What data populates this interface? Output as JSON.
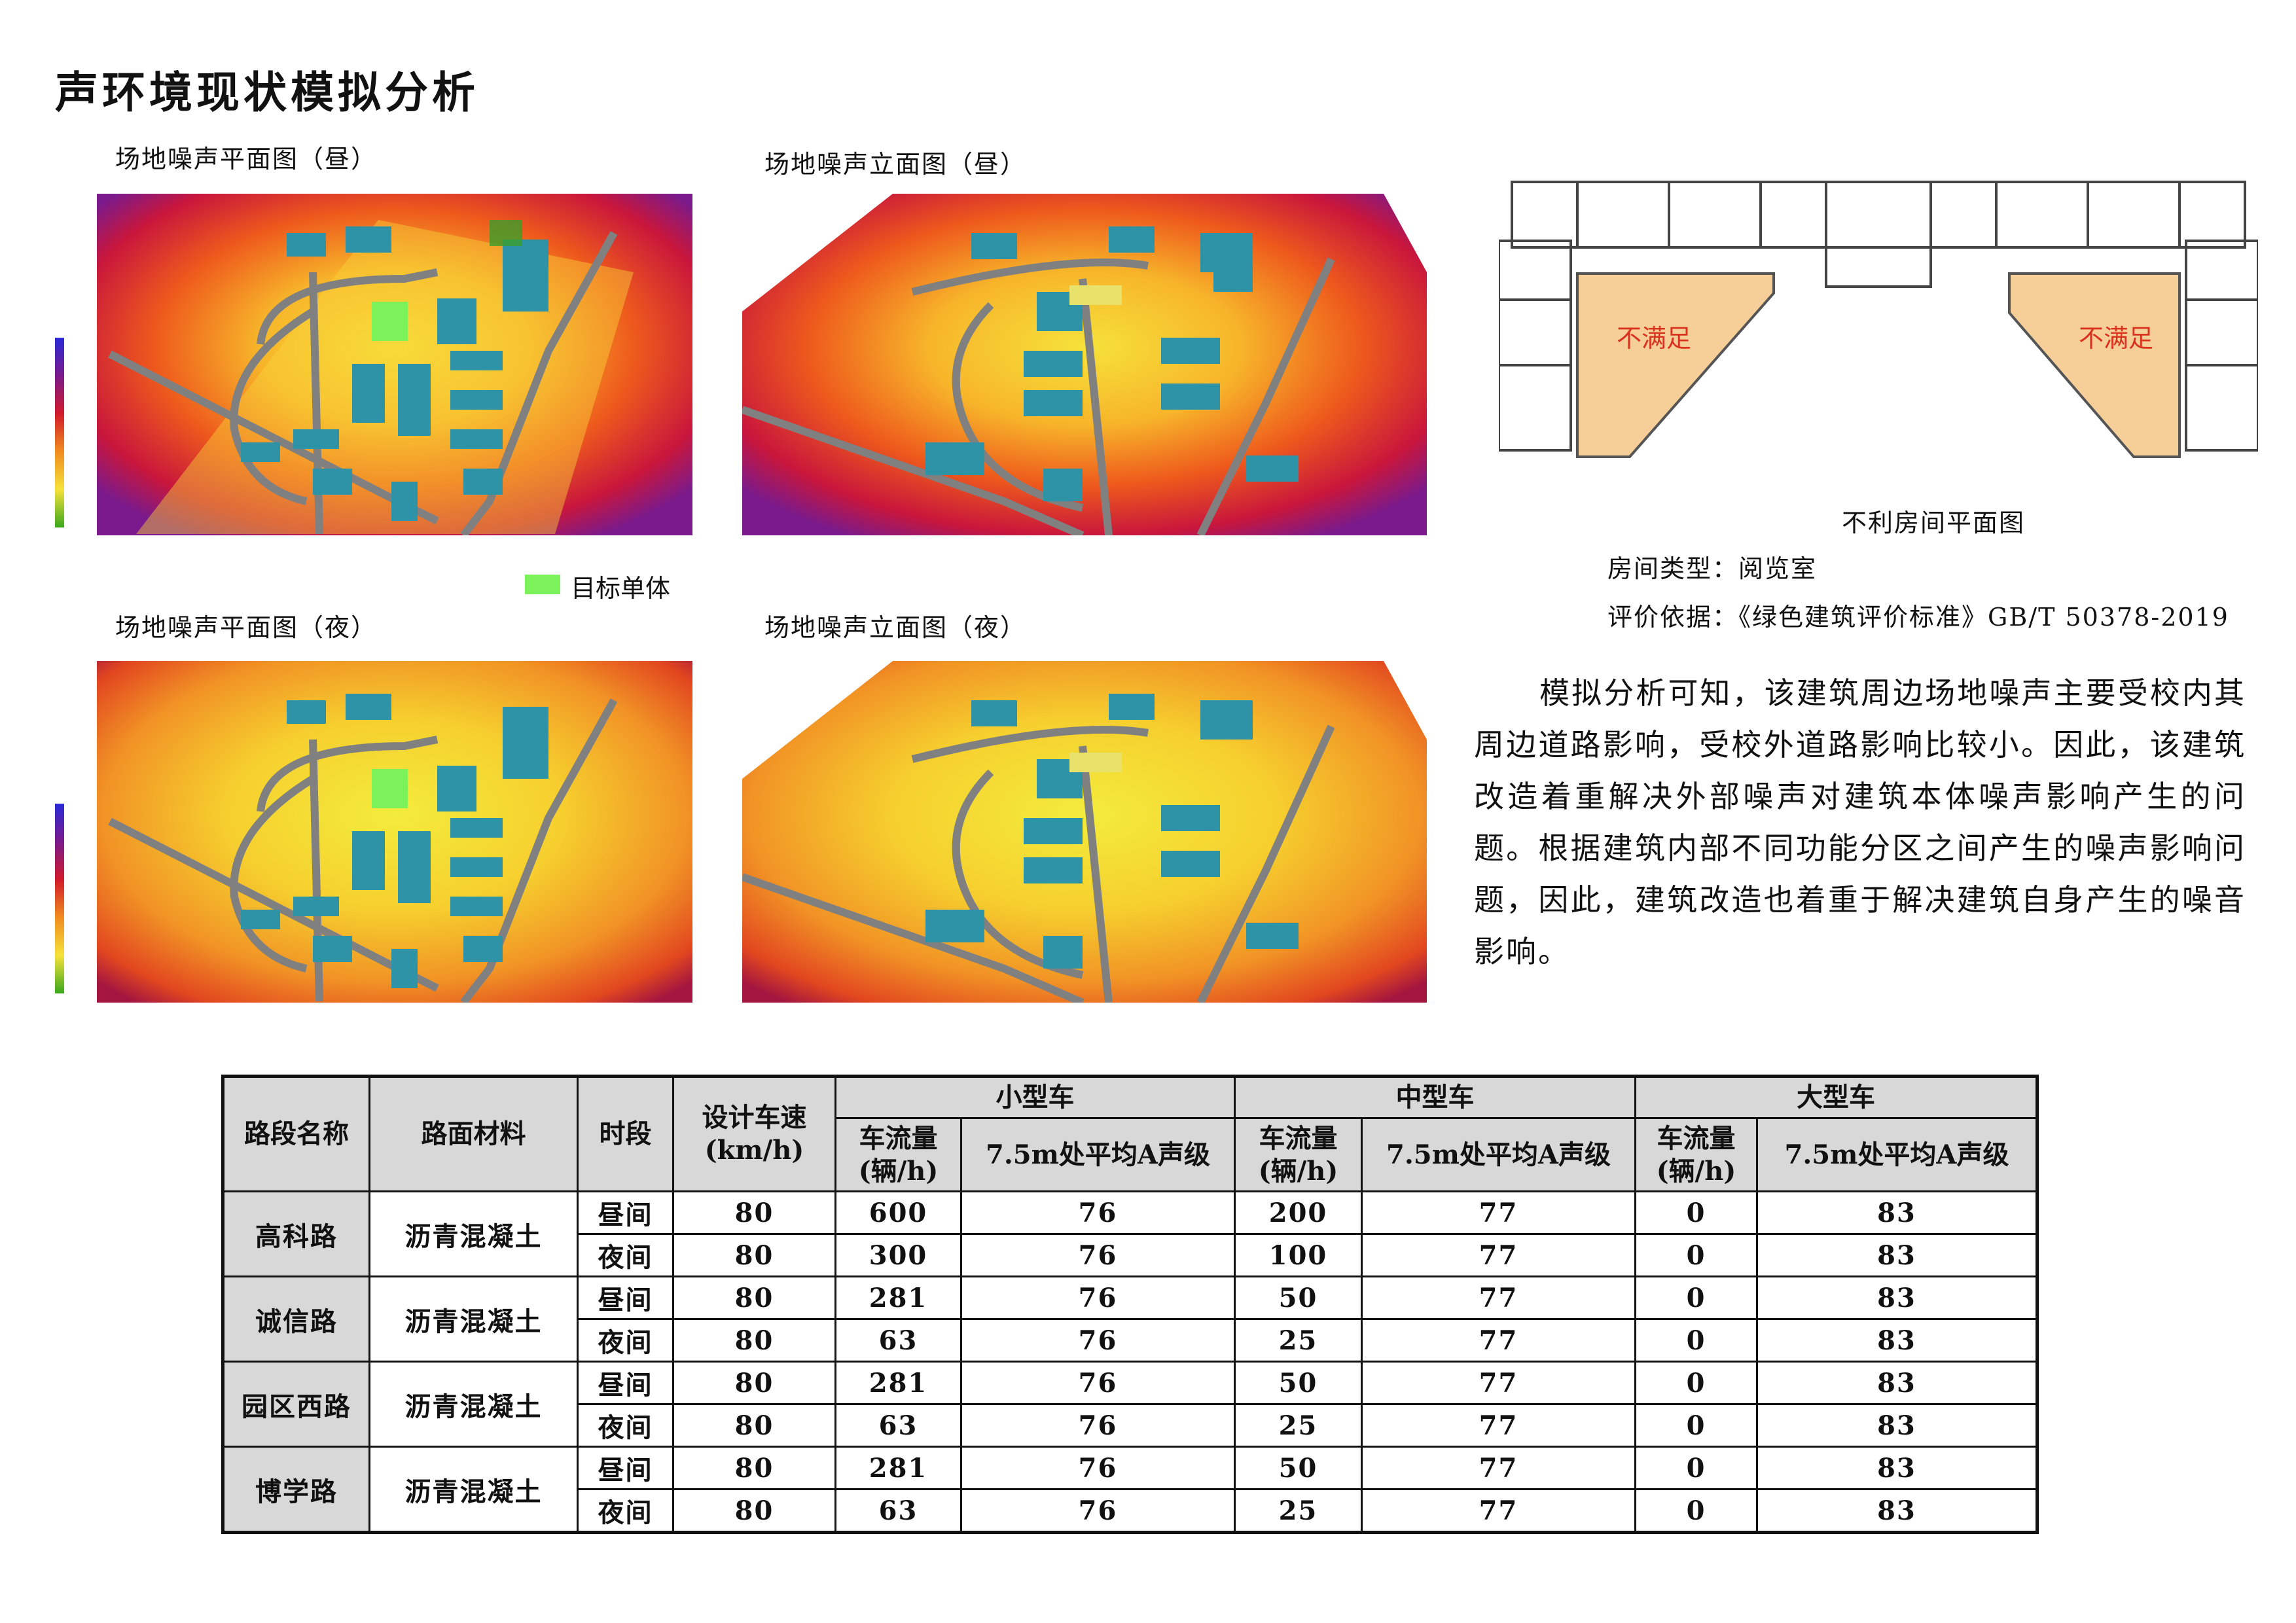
{
  "title": "声环境现状模拟分析",
  "captions": {
    "plan_day": "场地噪声平面图（昼）",
    "elev_day": "场地噪声立面图（昼）",
    "plan_night": "场地噪声平面图（夜）",
    "elev_night": "场地噪声立面图（夜）"
  },
  "legend": {
    "label": "目标单体",
    "color": "#7cf25a"
  },
  "floorplan": {
    "caption": "不利房间平面图",
    "room_left": "不满足",
    "room_right": "不满足"
  },
  "info": {
    "room_type": "房间类型：阅览室",
    "basis": "评价依据：《绿色建筑评价标准》GB/T 50378-2019"
  },
  "paragraph": "模拟分析可知，该建筑周边场地噪声主要受校内其周边道路影响，受校外道路影响比较小。因此，该建筑改造着重解决外部噪声对建筑本体噪声影响产生的问题。根据建筑内部不同功能分区之间产生的噪声影响问题，因此，建筑改造也着重于解决建筑自身产生的噪音影响。",
  "table": {
    "headers": {
      "road": "路段名称",
      "surface": "路面材料",
      "period": "时段",
      "speed": "设计车速(km/h)",
      "small": "小型车",
      "medium": "中型车",
      "large": "大型车",
      "flow": "车流量(辆/h)",
      "level": "7.5m处平均A声级"
    },
    "rows": [
      {
        "road": "高科路",
        "surface": "沥青混凝土",
        "day": [
          "昼间",
          "80",
          "600",
          "76",
          "200",
          "77",
          "0",
          "83"
        ],
        "night": [
          "夜间",
          "80",
          "300",
          "76",
          "100",
          "77",
          "0",
          "83"
        ]
      },
      {
        "road": "诚信路",
        "surface": "沥青混凝土",
        "day": [
          "昼间",
          "80",
          "281",
          "76",
          "50",
          "77",
          "0",
          "83"
        ],
        "night": [
          "夜间",
          "80",
          "63",
          "76",
          "25",
          "77",
          "0",
          "83"
        ]
      },
      {
        "road": "园区西路",
        "surface": "沥青混凝土",
        "day": [
          "昼间",
          "80",
          "281",
          "76",
          "50",
          "77",
          "0",
          "83"
        ],
        "night": [
          "夜间",
          "80",
          "63",
          "76",
          "25",
          "77",
          "0",
          "83"
        ]
      },
      {
        "road": "博学路",
        "surface": "沥青混凝土",
        "day": [
          "昼间",
          "80",
          "281",
          "76",
          "50",
          "77",
          "0",
          "83"
        ],
        "night": [
          "夜间",
          "80",
          "63",
          "76",
          "25",
          "77",
          "0",
          "83"
        ]
      }
    ]
  }
}
